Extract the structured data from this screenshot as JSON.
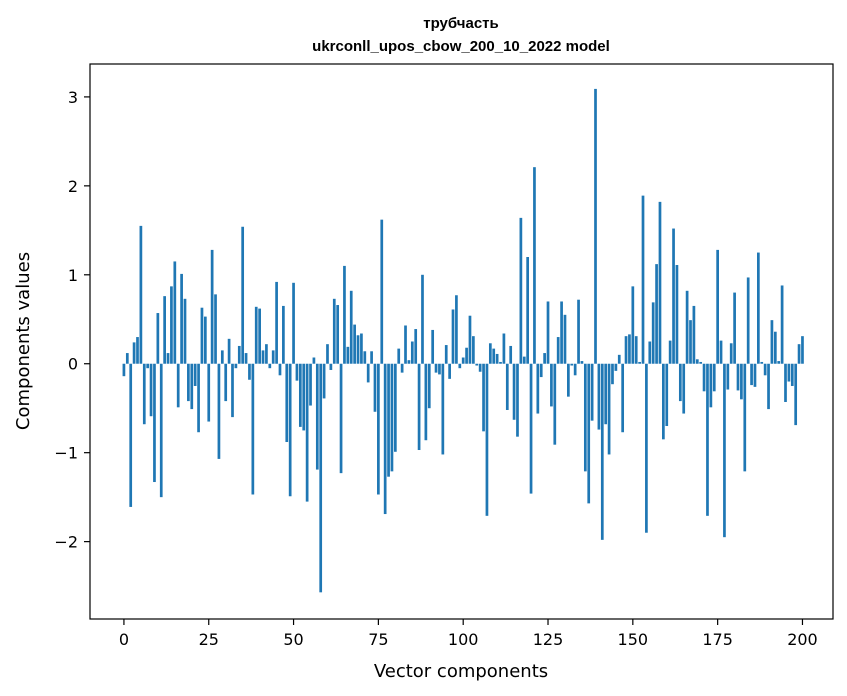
{
  "chart_data": {
    "type": "bar",
    "title": "трубчасть",
    "subtitle": "ukrconll_upos_cbow_200_10_2022 model",
    "xlabel": "Vector components",
    "ylabel": "Components values",
    "xlim": [
      -10,
      209
    ],
    "ylim": [
      -2.87,
      3.37
    ],
    "xticks": [
      0,
      25,
      50,
      75,
      100,
      125,
      150,
      175,
      200
    ],
    "xtick_labels": [
      "0",
      "25",
      "50",
      "75",
      "100",
      "125",
      "150",
      "175",
      "200"
    ],
    "yticks": [
      -2,
      -1,
      0,
      1,
      2,
      3
    ],
    "ytick_labels": [
      "−2",
      "−1",
      "0",
      "1",
      "2",
      "3"
    ],
    "bar_color": "#1f77b4",
    "grid": false,
    "legend": "none",
    "values": [
      -0.14,
      0.12,
      -1.61,
      0.24,
      0.3,
      1.55,
      -0.68,
      -0.05,
      -0.59,
      -1.33,
      0.57,
      -1.5,
      0.76,
      0.12,
      0.87,
      1.15,
      -0.49,
      1.01,
      0.73,
      -0.42,
      -0.51,
      -0.25,
      -0.77,
      0.63,
      0.53,
      -0.65,
      1.28,
      0.78,
      -1.07,
      0.15,
      -0.42,
      0.28,
      -0.6,
      -0.05,
      0.2,
      1.54,
      0.12,
      -0.18,
      -1.47,
      0.64,
      0.62,
      0.15,
      0.22,
      -0.05,
      0.15,
      0.92,
      -0.13,
      0.65,
      -0.88,
      -1.49,
      0.91,
      -0.19,
      -0.71,
      -0.75,
      -1.55,
      -0.47,
      0.07,
      -1.19,
      -2.57,
      -0.39,
      0.22,
      -0.07,
      0.73,
      0.66,
      -1.23,
      1.1,
      0.19,
      0.82,
      0.44,
      0.32,
      0.34,
      0.14,
      -0.21,
      0.14,
      -0.54,
      -1.47,
      1.62,
      -1.69,
      -1.27,
      -1.21,
      -0.99,
      0.17,
      -0.1,
      0.43,
      0.04,
      0.25,
      0.39,
      -0.97,
      1.0,
      -0.86,
      -0.5,
      0.38,
      -0.1,
      -0.12,
      -1.02,
      0.21,
      -0.17,
      0.61,
      0.77,
      -0.05,
      0.07,
      0.18,
      0.54,
      0.31,
      -0.02,
      -0.09,
      -0.76,
      -1.71,
      0.23,
      0.17,
      0.11,
      0.02,
      0.34,
      -0.52,
      0.2,
      -0.63,
      -0.82,
      1.64,
      0.08,
      1.2,
      -1.46,
      2.21,
      -0.56,
      -0.15,
      0.12,
      0.7,
      -0.48,
      -0.91,
      0.3,
      0.7,
      0.55,
      -0.37,
      -0.02,
      -0.13,
      0.72,
      0.03,
      -1.21,
      -1.57,
      -0.64,
      3.09,
      -0.74,
      -1.98,
      -0.68,
      -1.02,
      -0.23,
      -0.08,
      0.1,
      -0.77,
      0.31,
      0.33,
      0.87,
      0.31,
      0.02,
      1.89,
      -1.9,
      0.25,
      0.69,
      1.12,
      1.82,
      -0.85,
      -0.7,
      0.26,
      1.52,
      1.11,
      -0.42,
      -0.56,
      0.82,
      0.49,
      0.65,
      0.05,
      0.02,
      -0.31,
      -1.71,
      -0.49,
      -0.31,
      1.28,
      0.26,
      -1.95,
      -0.29,
      0.23,
      0.8,
      -0.3,
      -0.4,
      -1.21,
      0.97,
      -0.24,
      -0.26,
      1.25,
      0.02,
      -0.13,
      -0.51,
      0.49,
      0.36,
      0.03,
      0.88,
      -0.43,
      -0.2,
      -0.25,
      -0.69,
      0.22,
      0.31
    ]
  }
}
